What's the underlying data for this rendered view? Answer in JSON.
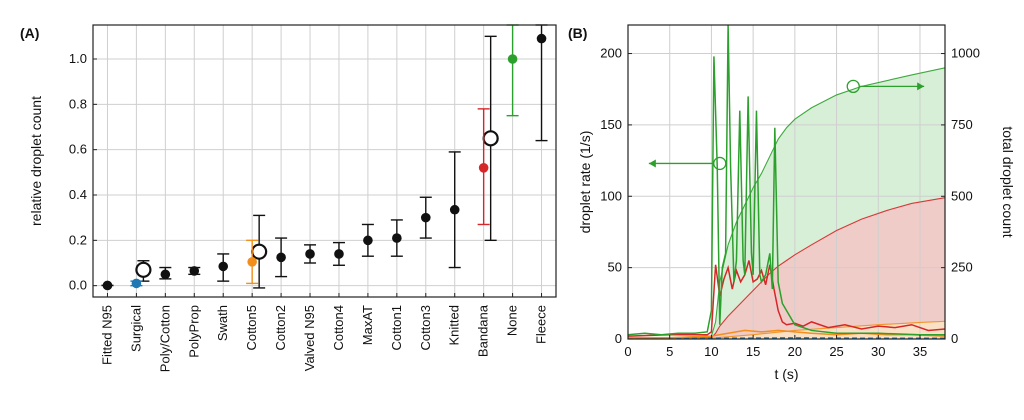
{
  "colors": {
    "black": "#111111",
    "blue": "#1f77b4",
    "orange": "#f28e1c",
    "red": "#d62728",
    "green": "#2ca02c",
    "redFill": "#f4c6c6",
    "greenFill": "#cfeccf"
  },
  "chart_data": [
    {
      "panel_label": "(A)",
      "type": "scatter",
      "ylabel": "relative droplet count",
      "ylim": [
        -0.05,
        1.15
      ],
      "yticks": [
        "0.0",
        "0.2",
        "0.4",
        "0.6",
        "0.8",
        "1.0"
      ],
      "grid": true,
      "categories": [
        "Fitted N95",
        "Surgical",
        "Poly/Cotton",
        "PolyProp",
        "Swath",
        "Cotton5",
        "Cotton2",
        "Valved N95",
        "Cotton4",
        "MaxAT",
        "Cotton1",
        "Cotton3",
        "Knitted",
        "Bandana",
        "None",
        "Fleece"
      ],
      "points": [
        {
          "category": "Fitted N95",
          "value": 0.001,
          "low": 0.001,
          "high": 0.001,
          "color": "black",
          "hollow_value": null
        },
        {
          "category": "Surgical",
          "value": 0.01,
          "low": 0.0,
          "high": 0.02,
          "color": "blue",
          "hollow_value": 0.07,
          "hollow_low": 0.02,
          "hollow_high": 0.11
        },
        {
          "category": "Poly/Cotton",
          "value": 0.05,
          "low": 0.03,
          "high": 0.08,
          "color": "black",
          "hollow_value": null
        },
        {
          "category": "PolyProp",
          "value": 0.065,
          "low": 0.05,
          "high": 0.08,
          "color": "black",
          "hollow_value": null
        },
        {
          "category": "Swath",
          "value": 0.085,
          "low": 0.02,
          "high": 0.14,
          "color": "black",
          "hollow_value": null
        },
        {
          "category": "Cotton5",
          "value": 0.105,
          "low": 0.01,
          "high": 0.2,
          "color": "orange",
          "hollow_value": 0.15,
          "hollow_low": -0.01,
          "hollow_high": 0.31
        },
        {
          "category": "Cotton2",
          "value": 0.125,
          "low": 0.04,
          "high": 0.21,
          "color": "black",
          "hollow_value": null
        },
        {
          "category": "Valved N95",
          "value": 0.14,
          "low": 0.1,
          "high": 0.18,
          "color": "black",
          "hollow_value": null
        },
        {
          "category": "Cotton4",
          "value": 0.14,
          "low": 0.09,
          "high": 0.19,
          "color": "black",
          "hollow_value": null
        },
        {
          "category": "MaxAT",
          "value": 0.2,
          "low": 0.13,
          "high": 0.27,
          "color": "black",
          "hollow_value": null
        },
        {
          "category": "Cotton1",
          "value": 0.21,
          "low": 0.13,
          "high": 0.29,
          "color": "black",
          "hollow_value": null
        },
        {
          "category": "Cotton3",
          "value": 0.3,
          "low": 0.21,
          "high": 0.39,
          "color": "black",
          "hollow_value": null
        },
        {
          "category": "Knitted",
          "value": 0.335,
          "low": 0.08,
          "high": 0.59,
          "color": "black",
          "hollow_value": null
        },
        {
          "category": "Bandana",
          "value": 0.52,
          "low": 0.27,
          "high": 0.78,
          "color": "red",
          "hollow_value": 0.65,
          "hollow_low": 0.2,
          "hollow_high": 1.1
        },
        {
          "category": "None",
          "value": 1.0,
          "low": 0.75,
          "high": 1.15,
          "color": "green",
          "hollow_value": null
        },
        {
          "category": "Fleece",
          "value": 1.09,
          "low": 0.64,
          "high": 1.15,
          "color": "black",
          "hollow_value": null
        }
      ]
    },
    {
      "panel_label": "(B)",
      "type": "line",
      "xlabel": "t (s)",
      "ylabel_left": "droplet rate (1/s)",
      "ylabel_right": "total droplet count",
      "xlim": [
        0,
        38
      ],
      "ylim_left": [
        0,
        220
      ],
      "ylim_right": [
        0,
        1100
      ],
      "xticks": [
        "0",
        "5",
        "10",
        "15",
        "20",
        "25",
        "30",
        "35"
      ],
      "yticks_left": [
        "0",
        "50",
        "100",
        "150",
        "200"
      ],
      "yticks_right": [
        "0",
        "250",
        "500",
        "750",
        "1000"
      ],
      "grid": true,
      "cumulative_series": [
        {
          "name": "green",
          "color": "green",
          "t": [
            0,
            10,
            10.5,
            11,
            12,
            13,
            14,
            15,
            16,
            17,
            18,
            19,
            20,
            22,
            25,
            28,
            31,
            34,
            38
          ],
          "count": [
            0,
            10,
            60,
            200,
            330,
            410,
            470,
            530,
            580,
            640,
            700,
            740,
            770,
            810,
            855,
            885,
            905,
            925,
            950
          ]
        },
        {
          "name": "red",
          "color": "red",
          "t": [
            0,
            10,
            10.5,
            11,
            12,
            13,
            14,
            15,
            16,
            17,
            18,
            19,
            20,
            22,
            25,
            28,
            31,
            34,
            38
          ],
          "count": [
            0,
            5,
            20,
            45,
            80,
            110,
            140,
            170,
            200,
            230,
            255,
            275,
            295,
            330,
            380,
            420,
            450,
            475,
            495
          ]
        },
        {
          "name": "orange",
          "color": "orange",
          "t": [
            0,
            10,
            15,
            20,
            25,
            30,
            35,
            38
          ],
          "count": [
            0,
            3,
            15,
            30,
            40,
            50,
            58,
            62
          ]
        }
      ],
      "rate_series": [
        {
          "name": "green",
          "color": "green",
          "t": [
            0,
            2,
            4,
            6,
            8,
            9.5,
            10,
            10.3,
            10.7,
            11,
            11.3,
            11.7,
            12,
            12.3,
            12.7,
            13,
            13.4,
            13.8,
            14,
            14.4,
            14.8,
            15,
            15.4,
            15.8,
            16,
            16.5,
            17,
            17.3,
            17.6,
            18,
            18.5,
            19,
            20,
            22,
            25,
            30,
            35,
            38
          ],
          "rate": [
            3,
            4,
            3,
            4,
            4,
            5,
            20,
            198,
            120,
            10,
            50,
            60,
            225,
            120,
            40,
            55,
            160,
            55,
            45,
            170,
            60,
            45,
            160,
            45,
            40,
            45,
            60,
            35,
            148,
            40,
            25,
            20,
            10,
            6,
            4,
            4,
            3,
            3
          ]
        },
        {
          "name": "red",
          "color": "red",
          "t": [
            0,
            5,
            9.5,
            10,
            10.5,
            11,
            11.5,
            12,
            12.5,
            13,
            13.5,
            14,
            14.5,
            15,
            15.5,
            16,
            16.5,
            17,
            17.5,
            18,
            18.5,
            19,
            20,
            21,
            22,
            24,
            26,
            28,
            30,
            32,
            34,
            36,
            38
          ],
          "rate": [
            2,
            3,
            3,
            5,
            52,
            30,
            42,
            50,
            35,
            48,
            40,
            45,
            55,
            40,
            42,
            48,
            38,
            52,
            35,
            20,
            12,
            10,
            11,
            9,
            12,
            8,
            10,
            7,
            9,
            8,
            10,
            6,
            7
          ]
        },
        {
          "name": "orange",
          "color": "orange",
          "t": [
            0,
            5,
            10,
            12,
            14,
            16,
            18,
            20,
            22,
            25,
            28,
            31,
            34,
            38
          ],
          "rate": [
            1,
            1,
            2,
            4,
            6,
            5,
            6,
            5,
            4,
            3,
            4,
            3,
            3,
            2
          ]
        },
        {
          "name": "blue",
          "color": "blue",
          "t": [
            0,
            10,
            20,
            30,
            38
          ],
          "rate": [
            0.5,
            0.5,
            0.8,
            0.5,
            0.5
          ]
        }
      ],
      "arrows": [
        {
          "direction": "left",
          "at_t": 11,
          "at_rate": 123,
          "to_t": 2.5
        },
        {
          "direction": "right",
          "at_t": 27,
          "at_rate": 177,
          "to_t": 35.5
        }
      ]
    }
  ]
}
